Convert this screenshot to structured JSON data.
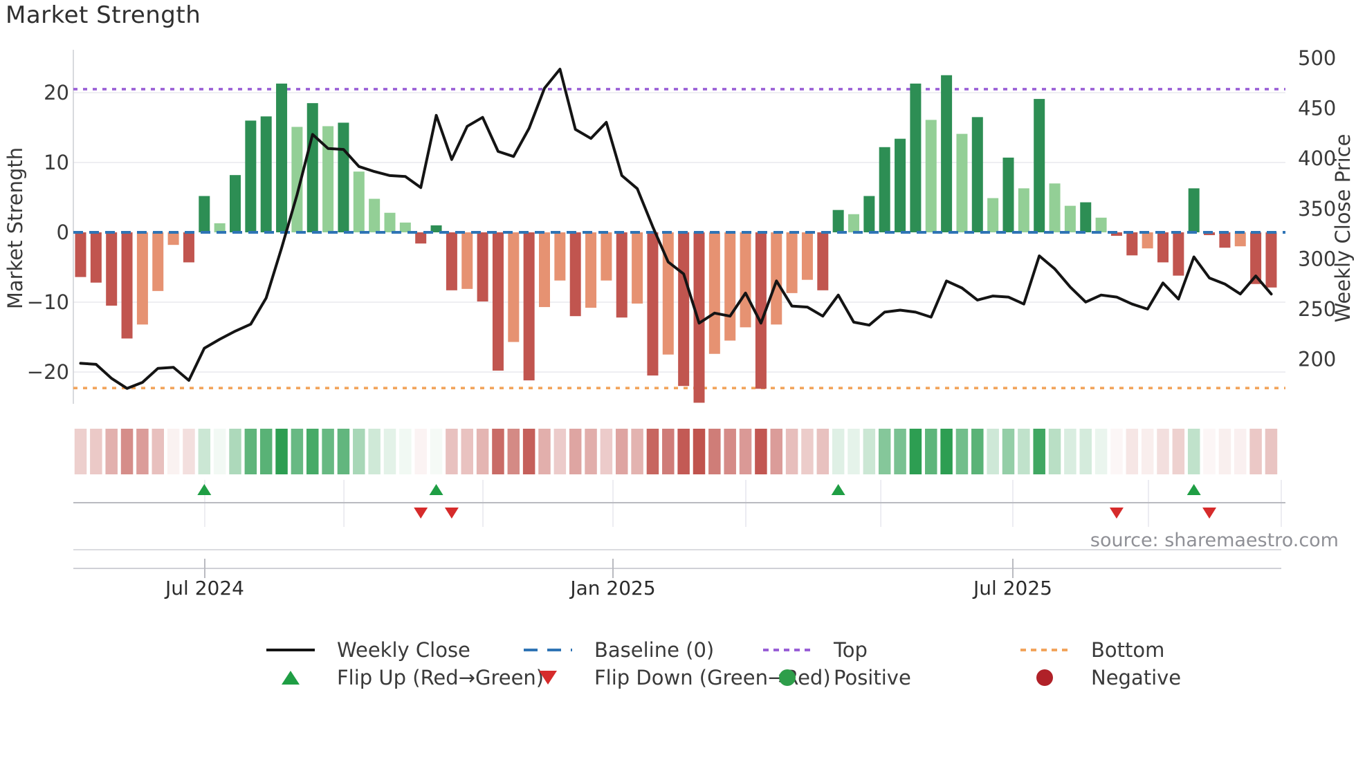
{
  "page": {
    "title": "Market Strength"
  },
  "axes": {
    "left": {
      "label": "Market Strength",
      "ticks": [
        20,
        10,
        0,
        -10,
        -20
      ]
    },
    "right": {
      "label": "Weekly Close Price",
      "ticks": [
        500,
        450,
        400,
        350,
        300,
        250,
        200
      ]
    },
    "x": {
      "major_ticks": [
        {
          "label": "Jul 2024",
          "week": 9.03
        },
        {
          "label": "Jan 2025",
          "week": 35.43
        },
        {
          "label": "Jul 2025",
          "week": 61.29
        }
      ],
      "minor_tick_weeks": [
        9.03,
        18.03,
        27.02,
        35.43,
        44.02,
        52.75,
        61.29,
        70.06,
        78.65
      ]
    }
  },
  "footer": {
    "source": "source: sharemaestro.com"
  },
  "legend": {
    "items": [
      {
        "label": "Weekly Close",
        "swatch": "line-black"
      },
      {
        "label": "Baseline (0)",
        "swatch": "dashed-blue"
      },
      {
        "label": "Top",
        "swatch": "dotted-purple"
      },
      {
        "label": "Bottom",
        "swatch": "dotted-orange"
      },
      {
        "label": "Flip Up (Red→Green)",
        "swatch": "triangle-up-green"
      },
      {
        "label": "Flip Down (Green→Red)",
        "swatch": "triangle-down-red"
      },
      {
        "label": "Positive",
        "swatch": "circle-green"
      },
      {
        "label": "Negative",
        "swatch": "circle-dark-red"
      }
    ]
  },
  "colors": {
    "bar_positive_strong": "#2d8e54",
    "bar_positive_weak": "#93cf96",
    "bar_negative_strong": "#c1554f",
    "bar_negative_weak": "#e69272",
    "price_line": "#141414",
    "baseline": "#2f74b5",
    "top_line": "#995fd6",
    "bottom_line": "#f2a45c",
    "flip_up": "#1f9e44",
    "flip_down": "#d62b2b",
    "heat_green": "#2d9e52",
    "heat_red": "#c0534d",
    "grid": "#e8e8ee",
    "spine": "#cfd0d6",
    "marker_axis": "#b9bac0",
    "tick_text": "#3a3a3a"
  },
  "chart_data": {
    "type": "combo (weekly bar oscillator + price line + heat strip + flip markers)",
    "x_unit": "week_index (1..78, ~May 2024 to Nov 2025)",
    "title": "Market Strength",
    "left_ylabel": "Market Strength",
    "right_ylabel": "Weekly Close Price",
    "left_ylim": [
      -24.6,
      26.2
    ],
    "right_ylim": [
      160,
      508
    ],
    "baseline": 0,
    "top_threshold": 20.5,
    "bottom_threshold": -22.3,
    "strength": [
      -6.4,
      -7.2,
      -10.5,
      -15.2,
      -13.2,
      -8.4,
      -1.8,
      -4.3,
      5.2,
      1.3,
      8.2,
      16.0,
      16.6,
      21.3,
      15.1,
      18.5,
      15.2,
      15.7,
      8.7,
      4.8,
      2.8,
      1.4,
      -1.6,
      1.0,
      -8.3,
      -8.1,
      -9.9,
      -19.8,
      -15.7,
      -21.2,
      -10.7,
      -6.9,
      -12.0,
      -10.8,
      -6.9,
      -12.2,
      -10.2,
      -20.5,
      -17.5,
      -22.0,
      -24.4,
      -17.4,
      -15.5,
      -13.6,
      -22.4,
      -13.2,
      -8.7,
      -6.8,
      -8.3,
      3.2,
      2.6,
      5.2,
      12.2,
      13.4,
      21.3,
      16.1,
      22.5,
      14.1,
      16.5,
      4.9,
      10.7,
      6.3,
      19.1,
      7.0,
      3.8,
      4.3,
      2.1,
      -0.5,
      -3.3,
      -2.3,
      -4.3,
      -6.2,
      6.3,
      -0.4,
      -2.2,
      -2.0,
      -7.4,
      -7.9
    ],
    "bar_shade": [
      "dr",
      "dr",
      "dr",
      "dr",
      "sa",
      "sa",
      "sa",
      "dr",
      "dg",
      "lg",
      "dg",
      "dg",
      "dg",
      "dg",
      "lg",
      "dg",
      "lg",
      "dg",
      "lg",
      "lg",
      "lg",
      "lg",
      "dr",
      "dg",
      "dr",
      "sa",
      "dr",
      "dr",
      "sa",
      "dr",
      "sa",
      "sa",
      "dr",
      "sa",
      "sa",
      "dr",
      "sa",
      "dr",
      "sa",
      "dr",
      "dr",
      "sa",
      "sa",
      "sa",
      "dr",
      "sa",
      "sa",
      "sa",
      "dr",
      "dg",
      "lg",
      "dg",
      "dg",
      "dg",
      "dg",
      "lg",
      "dg",
      "lg",
      "dg",
      "lg",
      "dg",
      "lg",
      "dg",
      "lg",
      "lg",
      "dg",
      "lg",
      "dr",
      "dr",
      "sa",
      "dr",
      "dr",
      "dg",
      "dr",
      "dr",
      "sa",
      "dr",
      "dr"
    ],
    "weekly_close": [
      196,
      195,
      181,
      171,
      177,
      191,
      192,
      179,
      211,
      220,
      228,
      235,
      261,
      311,
      364,
      424,
      410,
      409,
      392,
      387,
      383,
      382,
      371,
      443,
      399,
      432,
      441,
      407,
      402,
      430,
      470,
      489,
      429,
      420,
      436,
      383,
      370,
      332,
      297,
      285,
      236,
      246,
      243,
      266,
      236,
      278,
      253,
      252,
      243,
      264,
      237,
      234,
      247,
      249,
      247,
      242,
      278,
      271,
      259,
      263,
      262,
      255,
      303,
      290,
      272,
      257,
      264,
      262,
      255,
      250,
      276,
      260,
      302,
      281,
      275,
      265,
      283,
      265
    ],
    "flip_up_weeks": [
      9,
      24,
      50,
      73
    ],
    "flip_down_weeks": [
      23,
      25,
      68,
      74
    ],
    "heat_strip": "diverging red-white-green colormap of the weekly strength values (one cell per week)",
    "grid": "horizontal gridlines at strength -20,-10,10,20; faint vertical session ticks in marker row"
  }
}
